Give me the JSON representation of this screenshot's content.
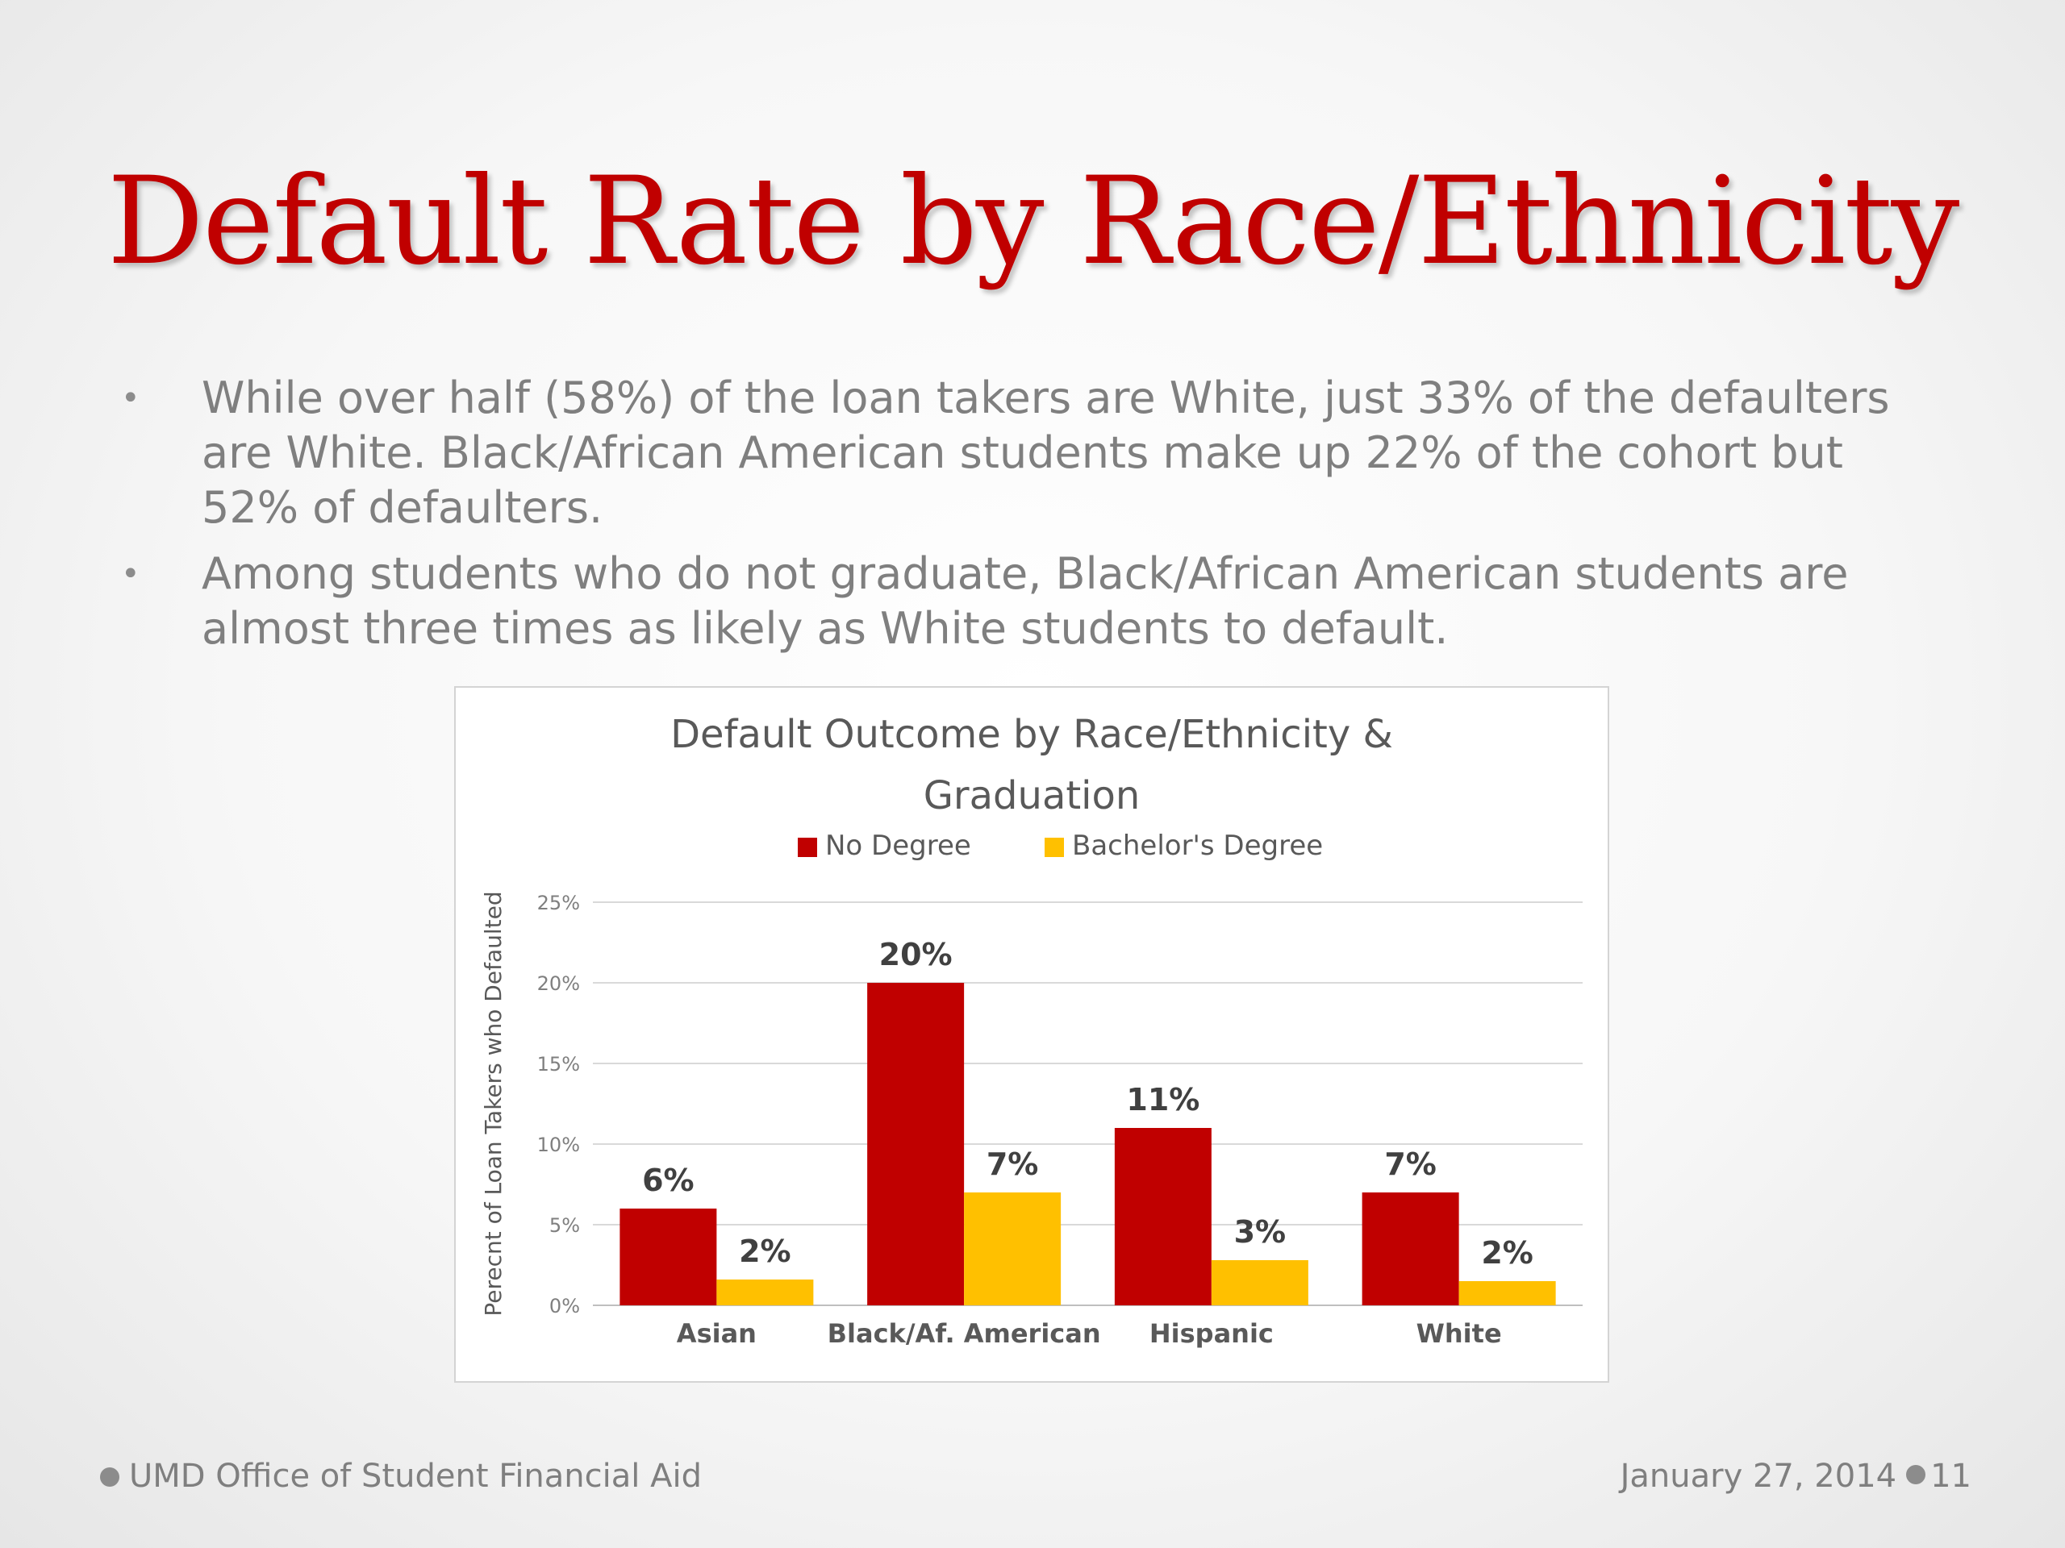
{
  "slide": {
    "title": "Default Rate by Race/Ethnicity",
    "bullets": [
      "While over half (58%) of the loan takers are White, just 33% of the defaulters are White. Black/African American students make up 22% of the cohort but 52% of defaulters.",
      "Among students who do not graduate, Black/African American students are almost three times as likely as White students to default."
    ],
    "bullet_symbol": "•",
    "footer_left": "UMD Office of Student Financial Aid",
    "footer_date": "January 27, 2014",
    "page_number": "11"
  },
  "colors": {
    "title": "#c00000",
    "no_degree": "#c00000",
    "bachelors": "#ffc000",
    "gridline": "#d9d9d9",
    "text": "#7f7f7f"
  },
  "chart_data": {
    "type": "bar",
    "title": "Default Outcome by Race/Ethnicity & Graduation",
    "title_lines": [
      "Default Outcome by Race/Ethnicity &",
      "Graduation"
    ],
    "ylabel": "Perecnt of Loan Takers who Defaulted",
    "xlabel": "",
    "categories": [
      "Asian",
      "Black/Af. American",
      "Hispanic",
      "White"
    ],
    "series": [
      {
        "name": "No Degree",
        "color": "#c00000",
        "values": [
          6,
          20,
          11,
          7
        ],
        "data_labels": [
          "6%",
          "20%",
          "11%",
          "7%"
        ]
      },
      {
        "name": "Bachelor's Degree",
        "color": "#ffc000",
        "values": [
          1.6,
          7,
          2.8,
          1.5
        ],
        "data_labels": [
          "2%",
          "7%",
          "3%",
          "2%"
        ]
      }
    ],
    "ylim": [
      0,
      25
    ],
    "yticks": [
      0,
      5,
      10,
      15,
      20,
      25
    ],
    "ytick_labels": [
      "0%",
      "5%",
      "10%",
      "15%",
      "20%",
      "25%"
    ],
    "grid": true,
    "legend_position": "top-center"
  }
}
